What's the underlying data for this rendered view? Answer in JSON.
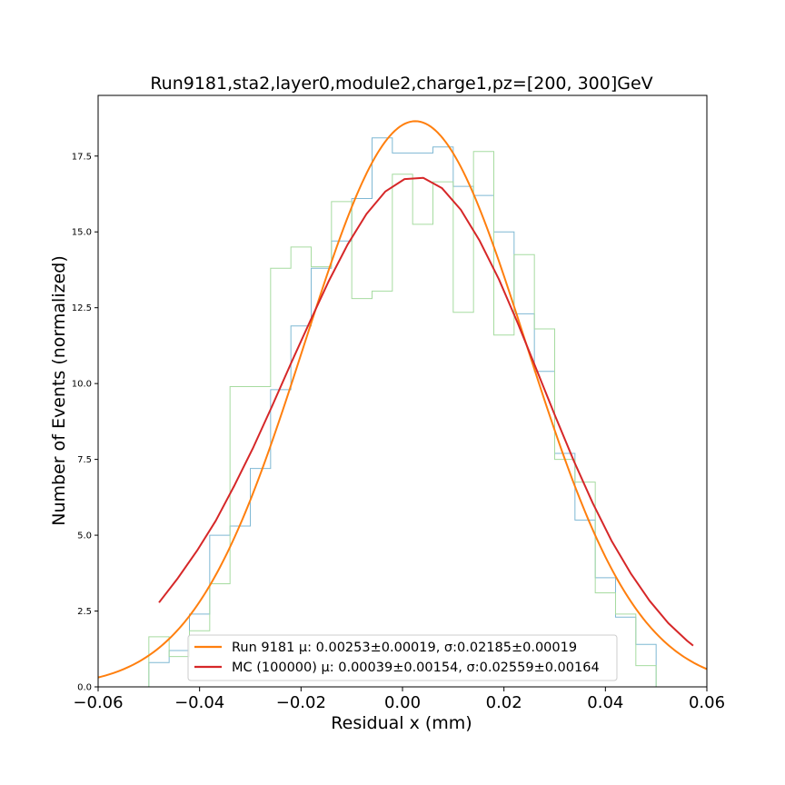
{
  "chart_data": {
    "type": "line",
    "title": "Run9181,sta2,layer0,module2,charge1,pz=[200, 300]GeV",
    "xlabel": "Residual x (mm)",
    "ylabel": "Number of Events (normalized)",
    "xlim": [
      -0.06,
      0.06
    ],
    "ylim": [
      0,
      19.5
    ],
    "x_ticks": [
      -0.06,
      -0.04,
      -0.02,
      0.0,
      0.02,
      0.04,
      0.06
    ],
    "x_tick_labels": [
      "−0.06",
      "−0.04",
      "−0.02",
      "0.00",
      "0.02",
      "0.04",
      "0.06"
    ],
    "y_ticks": [
      0,
      2.5,
      5,
      7.5,
      10,
      12.5,
      15,
      17.5
    ],
    "y_tick_labels": [
      "0.0",
      "2.5",
      "5.0",
      "7.5",
      "10.0",
      "12.5",
      "15.0",
      "17.5"
    ],
    "grid": false,
    "legend_position": "bottom-center",
    "colors": {
      "data_hist": "#7fb8d4",
      "mc_hist": "#a6dba0",
      "data_fit": "#ff7f0e",
      "mc_fit": "#d62728",
      "frame": "#000000"
    },
    "histograms": [
      {
        "kind": "step",
        "color_key": "data_hist",
        "edges": [
          -0.05,
          -0.046,
          -0.042,
          -0.038,
          -0.034,
          -0.03,
          -0.026,
          -0.022,
          -0.018,
          -0.014,
          -0.01,
          -0.006,
          -0.002,
          0.002,
          0.006,
          0.01,
          0.014,
          0.018,
          0.022,
          0.026,
          0.03,
          0.034,
          0.038,
          0.042,
          0.046,
          0.05
        ],
        "values": [
          0.8,
          1.2,
          2.4,
          5.0,
          5.3,
          7.2,
          9.8,
          11.9,
          13.8,
          14.7,
          16.1,
          18.1,
          17.6,
          17.6,
          17.8,
          16.5,
          16.2,
          15.0,
          12.3,
          10.4,
          7.7,
          5.5,
          3.6,
          2.3,
          1.4
        ]
      },
      {
        "kind": "step",
        "color_key": "mc_hist",
        "edges": [
          -0.05,
          -0.046,
          -0.042,
          -0.038,
          -0.034,
          -0.03,
          -0.026,
          -0.022,
          -0.018,
          -0.014,
          -0.01,
          -0.006,
          -0.002,
          0.002,
          0.006,
          0.01,
          0.014,
          0.018,
          0.022,
          0.026,
          0.03,
          0.034,
          0.038,
          0.042,
          0.046,
          0.05
        ],
        "values": [
          1.65,
          1.0,
          1.85,
          3.4,
          9.9,
          9.9,
          13.8,
          14.5,
          13.85,
          16.0,
          12.8,
          13.05,
          16.9,
          15.25,
          16.65,
          12.35,
          17.65,
          11.6,
          14.25,
          11.8,
          7.5,
          6.75,
          3.1,
          2.4,
          0.7
        ]
      }
    ],
    "series": [
      {
        "name": "Run 9181 μ: 0.00253±0.00019, σ:0.02185±0.00019",
        "color_key": "data_fit",
        "kind": "gaussian",
        "amplitude": 18.65,
        "mu": 0.00253,
        "sigma": 0.02185,
        "x_range": [
          -0.06,
          0.06
        ]
      },
      {
        "name": "MC (100000) μ: 0.00039±0.00154, σ:0.02559±0.00164",
        "color_key": "mc_fit",
        "kind": "points",
        "x": [
          -0.048,
          -0.0443,
          -0.0405,
          -0.0368,
          -0.0331,
          -0.0294,
          -0.0257,
          -0.022,
          -0.0182,
          -0.0145,
          -0.0108,
          -0.0071,
          -0.0034,
          0.0004,
          0.0041,
          0.0078,
          0.0115,
          0.0152,
          0.019,
          0.0227,
          0.0264,
          0.0301,
          0.0338,
          0.0375,
          0.0412,
          0.045,
          0.0487,
          0.0524,
          0.0561,
          0.0573
        ],
        "y": [
          2.78,
          3.58,
          4.49,
          5.48,
          6.65,
          7.9,
          9.26,
          10.66,
          12.06,
          13.39,
          14.59,
          15.59,
          16.33,
          16.74,
          16.78,
          16.44,
          15.73,
          14.71,
          13.44,
          12.0,
          10.47,
          8.93,
          7.44,
          6.06,
          4.82,
          3.74,
          2.84,
          2.1,
          1.52,
          1.36
        ]
      }
    ]
  }
}
